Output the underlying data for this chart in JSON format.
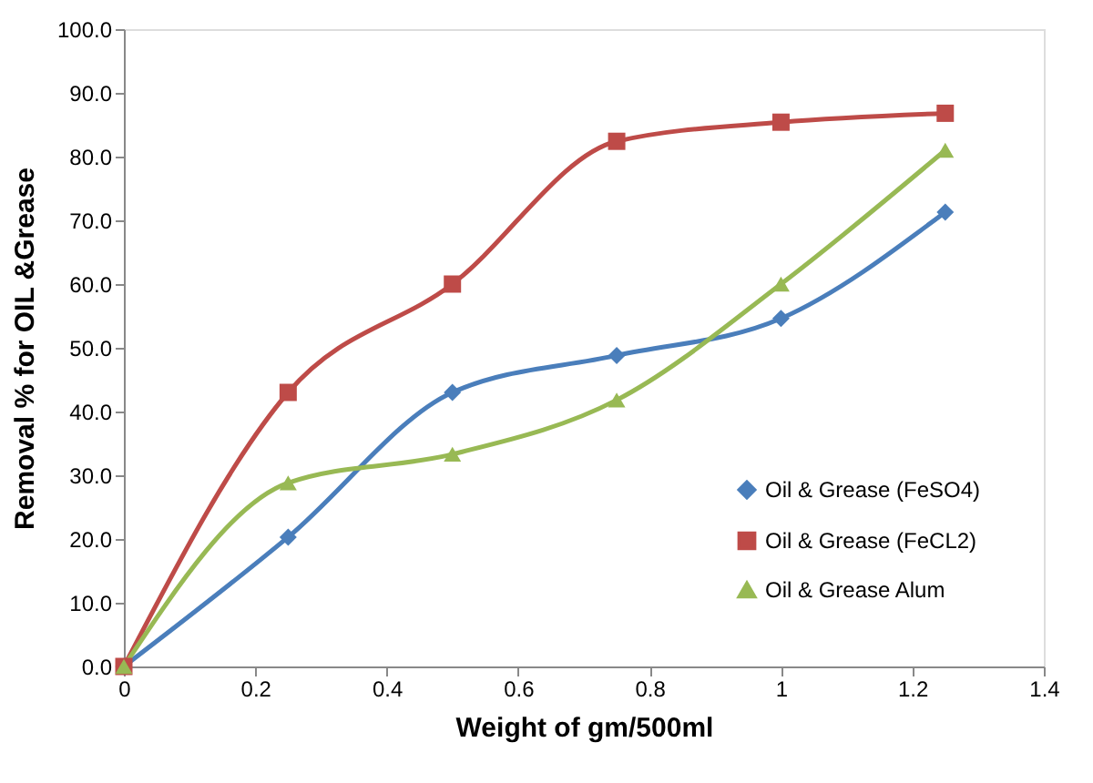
{
  "chart_data": {
    "type": "line",
    "xlabel": "Weight  of gm/500ml",
    "ylabel": "Removal % for OIL &Grease",
    "x": [
      0,
      0.25,
      0.5,
      0.75,
      1,
      1.25
    ],
    "series": [
      {
        "name": "Oil & Grease (FeSO4)",
        "color": "#4a7ebb",
        "marker": "diamond",
        "values": [
          0,
          20.3,
          43,
          48.8,
          54.6,
          71.3
        ]
      },
      {
        "name": "Oil & Grease (FeCL2)",
        "color": "#be4b48",
        "marker": "square",
        "values": [
          0,
          43,
          60,
          82.4,
          85.4,
          86.8
        ]
      },
      {
        "name": "Oil & Grease Alum",
        "color": "#98b954",
        "marker": "triangle",
        "values": [
          0,
          28.8,
          33.3,
          41.8,
          60,
          81
        ]
      }
    ],
    "xlim": [
      0,
      1.4
    ],
    "xticks": [
      0,
      0.2,
      0.4,
      0.6,
      0.8,
      1,
      1.2,
      1.4
    ],
    "ylim": [
      0,
      100
    ],
    "yticks": [
      {
        "value": 0,
        "label": "0.0"
      },
      {
        "value": 10,
        "label": "10.0"
      },
      {
        "value": 20,
        "label": "20.0"
      },
      {
        "value": 30,
        "label": "30.0"
      },
      {
        "value": 40,
        "label": "40.0"
      },
      {
        "value": 50,
        "label": "50.0"
      },
      {
        "value": 60,
        "label": "60.0"
      },
      {
        "value": 70,
        "label": "70.0"
      },
      {
        "value": 80,
        "label": "80.0"
      },
      {
        "value": 90,
        "label": "90.0"
      },
      {
        "value": 100,
        "label": "100.0"
      }
    ],
    "grid": false,
    "legend": "bottom right",
    "line_style": "solid"
  }
}
